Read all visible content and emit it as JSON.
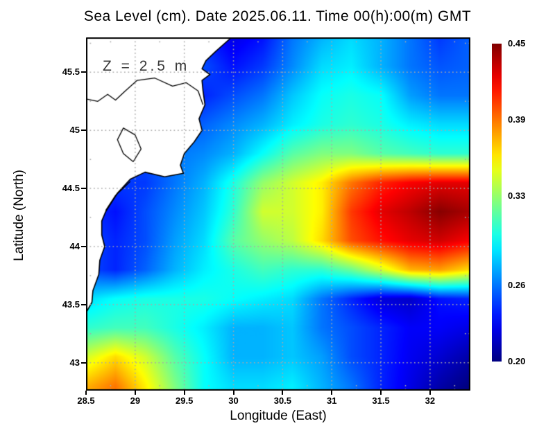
{
  "title": "Sea Level (cm). Date 2025.06.11. Time 00(h):00(m) GMT",
  "annotation": "Z = 2.5 m",
  "axes": {
    "x_label": "Longitude (East)",
    "y_label": "Latitude (North)"
  },
  "colors": {
    "background": "#ffffff",
    "frame": "#000000",
    "gridline": "#a8a8a8",
    "coastline": "#000000",
    "land_fill": "#ffffff",
    "annotation_text": "#3a3a3a"
  },
  "chart_data": {
    "type": "heatmap",
    "title": "Sea Level (cm). Date 2025.06.11. Time 00(h):00(m) GMT",
    "xlabel": "Longitude (East)",
    "ylabel": "Latitude (North)",
    "annotation": "Z = 2.5 m",
    "colormap": "jet",
    "grid_on": true,
    "x_range": [
      28.5,
      32.41
    ],
    "y_range": [
      42.76,
      45.8
    ],
    "value_range": [
      0.2,
      0.45
    ],
    "x_ticks": [
      {
        "value": 28.5,
        "label": "28.5"
      },
      {
        "value": 29.0,
        "label": "29"
      },
      {
        "value": 29.5,
        "label": "29.5"
      },
      {
        "value": 30.0,
        "label": "30"
      },
      {
        "value": 30.5,
        "label": "30.5"
      },
      {
        "value": 31.0,
        "label": "31"
      },
      {
        "value": 31.5,
        "label": "31.5"
      },
      {
        "value": 32.0,
        "label": "32"
      }
    ],
    "y_ticks": [
      {
        "value": 45.5,
        "label": "45.5"
      },
      {
        "value": 45.0,
        "label": "45"
      },
      {
        "value": 44.5,
        "label": "44.5"
      },
      {
        "value": 44.0,
        "label": "44"
      },
      {
        "value": 43.5,
        "label": "43.5"
      },
      {
        "value": 43.0,
        "label": "43"
      }
    ],
    "colorbar_ticks": [
      {
        "value": 0.45,
        "label": "0.45"
      },
      {
        "value": 0.39,
        "label": "0.39"
      },
      {
        "value": 0.33,
        "label": "0.33"
      },
      {
        "value": 0.26,
        "label": "0.26"
      },
      {
        "value": 0.2,
        "label": "0.20"
      }
    ],
    "grid": {
      "lons": [
        28.5,
        28.8,
        29.1,
        29.4,
        29.7,
        30.0,
        30.3,
        30.6,
        30.9,
        31.2,
        31.5,
        31.8,
        32.1,
        32.4
      ],
      "lats": [
        45.8,
        45.55,
        45.3,
        45.05,
        44.8,
        44.55,
        44.3,
        44.05,
        43.8,
        43.55,
        43.3,
        43.05,
        42.8
      ],
      "values": [
        [
          0.25,
          0.25,
          0.25,
          0.25,
          0.24,
          0.225,
          0.235,
          0.26,
          0.275,
          0.285,
          0.275,
          0.26,
          0.245,
          0.255
        ],
        [
          0.25,
          0.25,
          0.25,
          0.25,
          0.25,
          0.235,
          0.245,
          0.265,
          0.285,
          0.29,
          0.275,
          0.26,
          0.252,
          0.255
        ],
        [
          0.25,
          0.25,
          0.25,
          0.25,
          0.24,
          0.25,
          0.26,
          0.28,
          0.295,
          0.3,
          0.295,
          0.27,
          0.26,
          0.26
        ],
        [
          0.25,
          0.25,
          0.25,
          0.25,
          0.255,
          0.265,
          0.275,
          0.29,
          0.3,
          0.305,
          0.3,
          0.29,
          0.285,
          0.285
        ],
        [
          0.25,
          0.25,
          0.25,
          0.26,
          0.265,
          0.275,
          0.295,
          0.315,
          0.325,
          0.325,
          0.315,
          0.31,
          0.305,
          0.305
        ],
        [
          0.25,
          0.245,
          0.245,
          0.26,
          0.275,
          0.3,
          0.33,
          0.345,
          0.36,
          0.39,
          0.41,
          0.42,
          0.425,
          0.425
        ],
        [
          0.245,
          0.235,
          0.25,
          0.265,
          0.28,
          0.305,
          0.345,
          0.345,
          0.36,
          0.405,
          0.425,
          0.435,
          0.448,
          0.44
        ],
        [
          0.25,
          0.24,
          0.25,
          0.27,
          0.285,
          0.315,
          0.33,
          0.34,
          0.365,
          0.4,
          0.415,
          0.425,
          0.43,
          0.42
        ],
        [
          0.25,
          0.24,
          0.255,
          0.275,
          0.29,
          0.3,
          0.31,
          0.305,
          0.305,
          0.32,
          0.345,
          0.375,
          0.38,
          0.365
        ],
        [
          0.285,
          0.295,
          0.3,
          0.3,
          0.3,
          0.295,
          0.29,
          0.285,
          0.26,
          0.24,
          0.222,
          0.218,
          0.235,
          0.24
        ],
        [
          0.305,
          0.31,
          0.31,
          0.3,
          0.29,
          0.275,
          0.275,
          0.28,
          0.26,
          0.25,
          0.24,
          0.23,
          0.23,
          0.225
        ],
        [
          0.345,
          0.365,
          0.345,
          0.315,
          0.295,
          0.275,
          0.275,
          0.28,
          0.27,
          0.25,
          0.24,
          0.228,
          0.22,
          0.21
        ],
        [
          0.375,
          0.39,
          0.36,
          0.325,
          0.295,
          0.285,
          0.285,
          0.29,
          0.275,
          0.26,
          0.24,
          0.225,
          0.21,
          0.2
        ]
      ]
    },
    "coastline": [
      [
        29.98,
        45.8
      ],
      [
        29.82,
        45.68
      ],
      [
        29.72,
        45.6
      ],
      [
        29.68,
        45.53
      ],
      [
        29.76,
        45.48
      ],
      [
        29.68,
        45.43
      ],
      [
        29.69,
        45.34
      ],
      [
        29.71,
        45.22
      ],
      [
        29.65,
        45.1
      ],
      [
        29.68,
        45.0
      ],
      [
        29.6,
        44.9
      ],
      [
        29.5,
        44.8
      ],
      [
        29.46,
        44.7
      ],
      [
        29.49,
        44.63
      ],
      [
        29.3,
        44.6
      ],
      [
        29.1,
        44.64
      ],
      [
        28.95,
        44.58
      ],
      [
        28.82,
        44.46
      ],
      [
        28.7,
        44.3
      ],
      [
        28.66,
        44.22
      ],
      [
        28.66,
        44.1
      ],
      [
        28.69,
        44.0
      ],
      [
        28.64,
        43.88
      ],
      [
        28.63,
        43.76
      ],
      [
        28.57,
        43.62
      ],
      [
        28.56,
        43.52
      ],
      [
        28.5,
        43.43
      ]
    ],
    "inland_waters": [
      [
        [
          28.5,
          45.27
        ],
        [
          28.62,
          45.25
        ],
        [
          28.72,
          45.31
        ],
        [
          28.8,
          45.26
        ],
        [
          28.9,
          45.34
        ],
        [
          29.02,
          45.43
        ],
        [
          29.2,
          45.45
        ],
        [
          29.38,
          45.38
        ],
        [
          29.52,
          45.41
        ],
        [
          29.64,
          45.34
        ],
        [
          29.69,
          45.22
        ]
      ],
      [
        [
          28.98,
          44.73
        ],
        [
          28.88,
          44.8
        ],
        [
          28.82,
          44.92
        ],
        [
          28.88,
          45.02
        ],
        [
          29.0,
          44.96
        ],
        [
          29.06,
          44.84
        ],
        [
          28.98,
          44.73
        ]
      ],
      [
        [
          28.95,
          44.56
        ],
        [
          28.8,
          44.44
        ],
        [
          28.7,
          44.31
        ]
      ]
    ]
  }
}
